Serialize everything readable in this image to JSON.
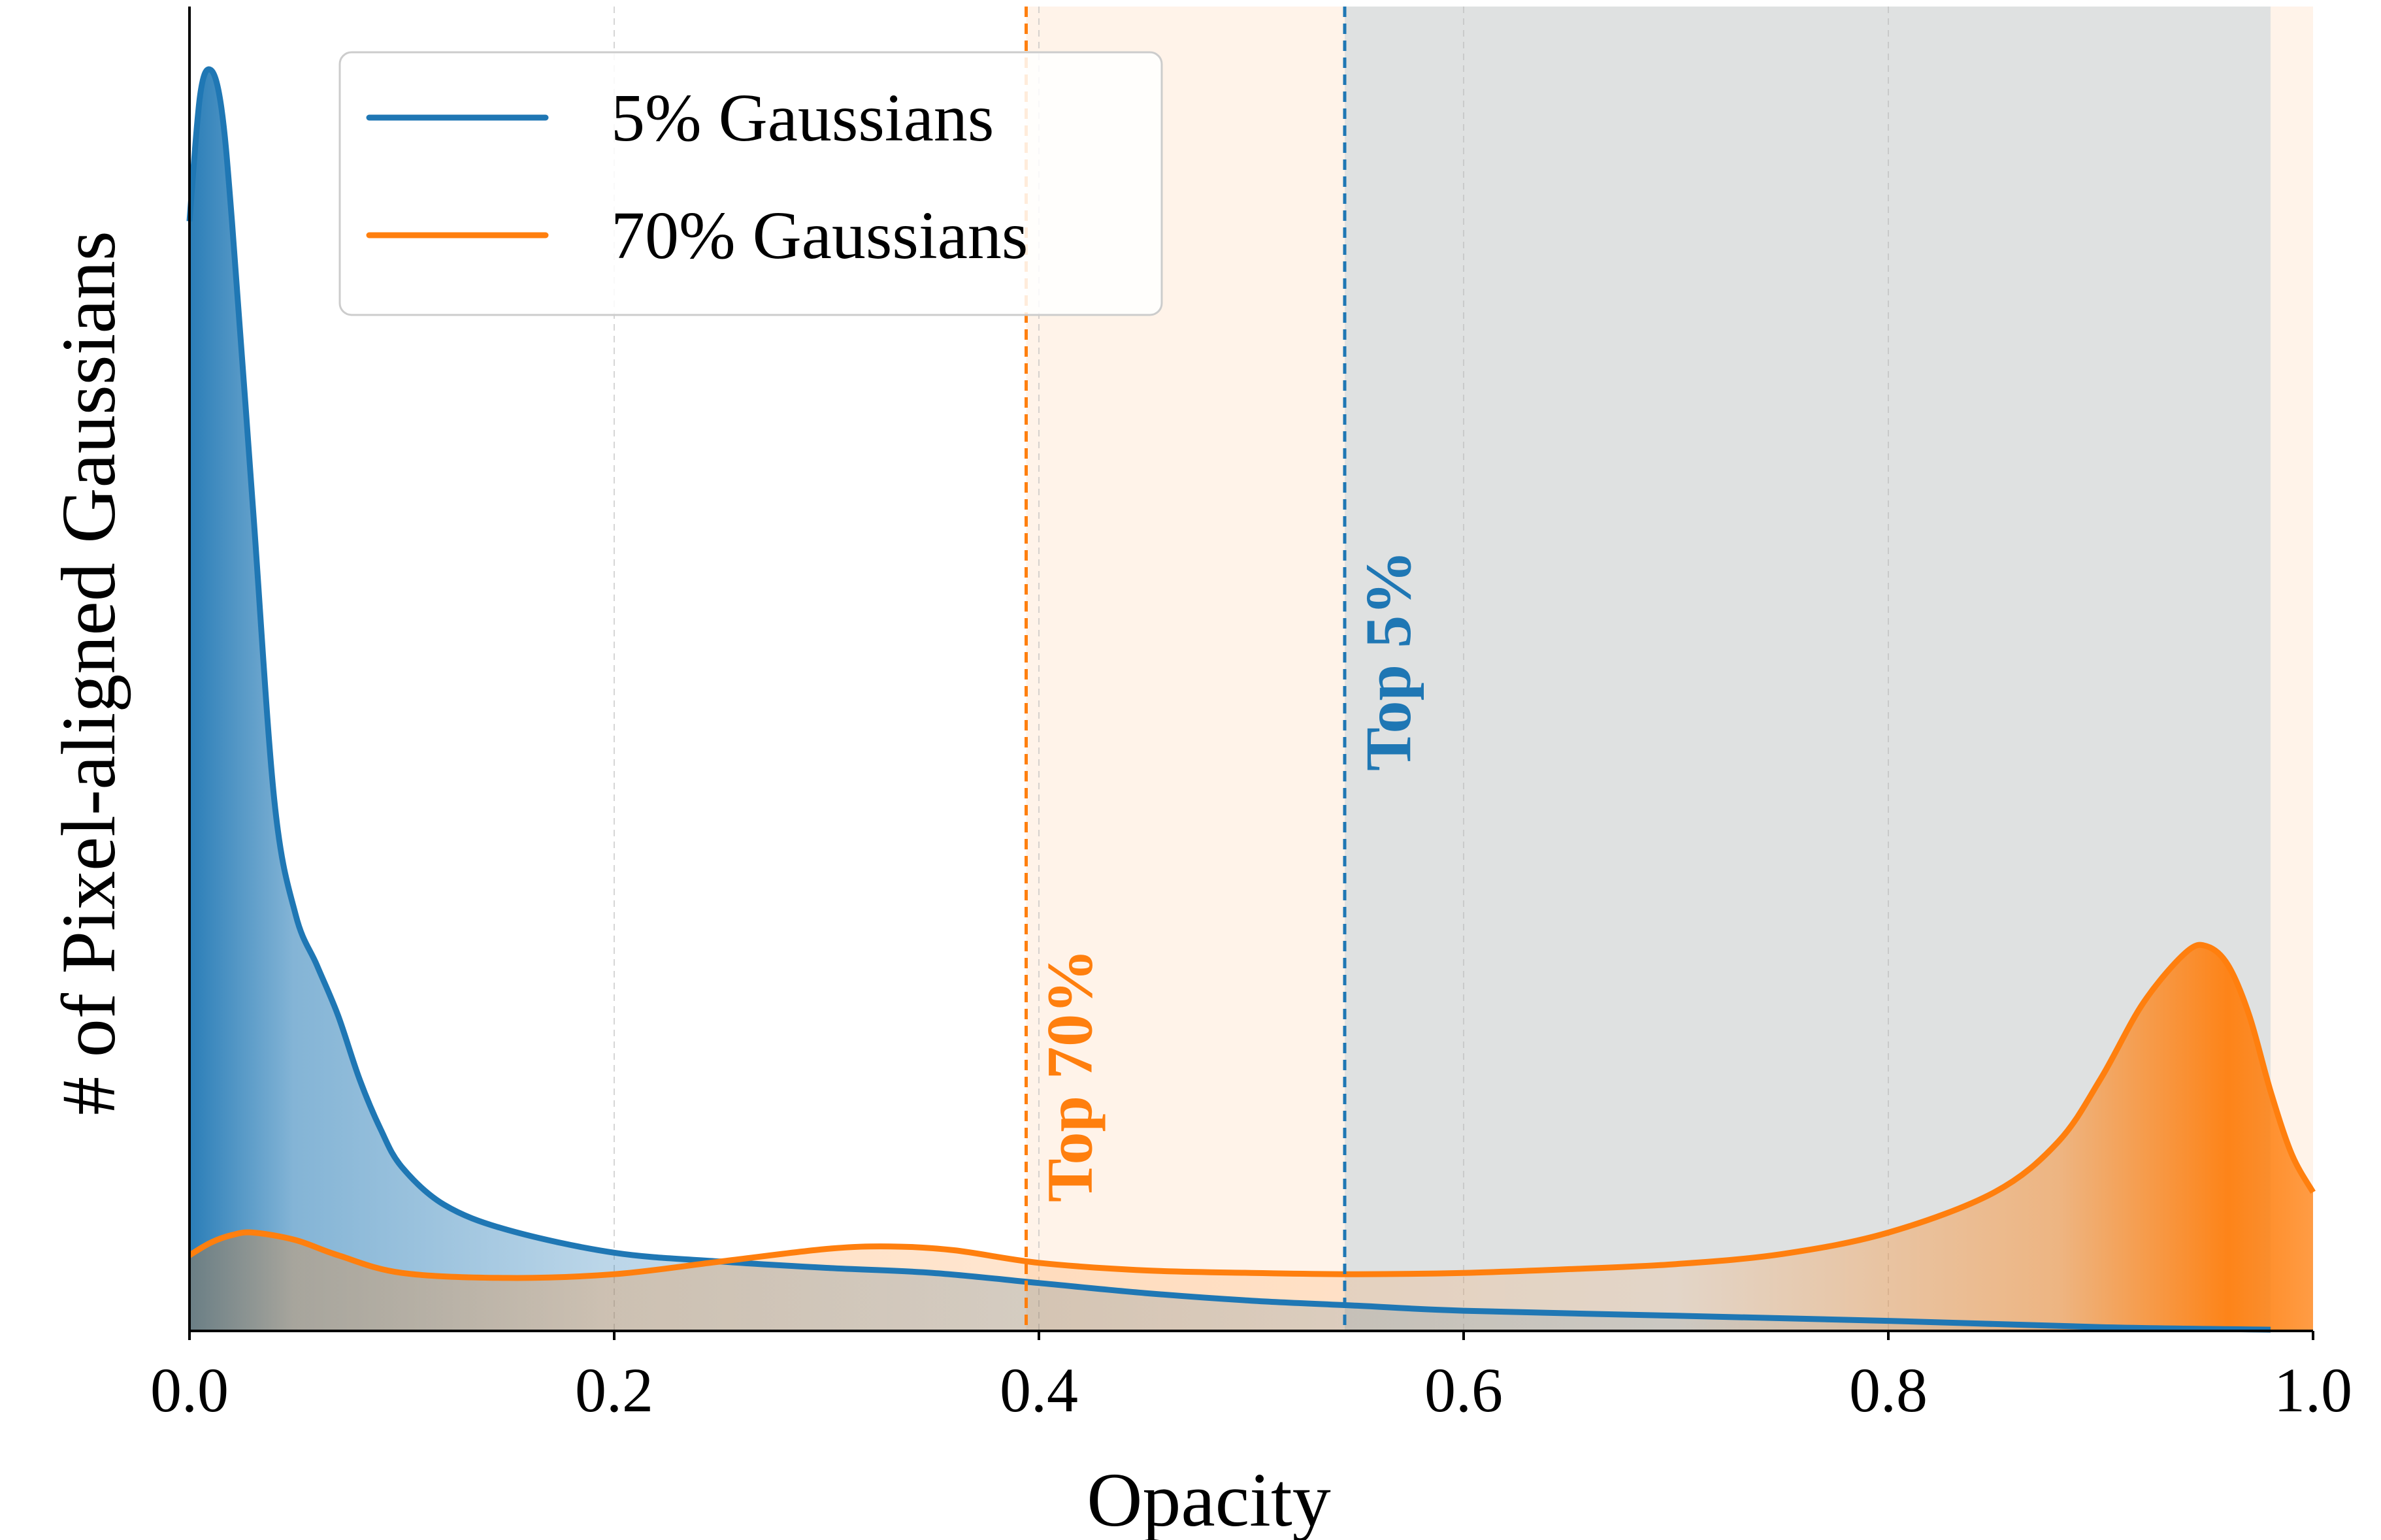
{
  "chart_data": {
    "type": "area",
    "xlabel": "Opacity",
    "ylabel": "# of Pixel-aligned Gaussians",
    "xlim": [
      0,
      1
    ],
    "ylim": [
      0,
      1
    ],
    "x_ticks": [
      "0.0",
      "0.2",
      "0.4",
      "0.6",
      "0.8",
      "1.0"
    ],
    "y_ticks_shown": false,
    "grid": "vertical dashed",
    "legend_position": "upper-left",
    "series": [
      {
        "name": "5% Gaussians",
        "color": "#1f77b4",
        "x": [
          0.0,
          0.005,
          0.01,
          0.015,
          0.02,
          0.03,
          0.04,
          0.05,
          0.06,
          0.07,
          0.08,
          0.09,
          0.1,
          0.12,
          0.15,
          0.2,
          0.25,
          0.3,
          0.35,
          0.4,
          0.45,
          0.5,
          0.55,
          0.6,
          0.7,
          0.8,
          0.9,
          0.98
        ],
        "values": [
          0.88,
          0.98,
          1.0,
          0.97,
          0.88,
          0.65,
          0.42,
          0.33,
          0.29,
          0.25,
          0.2,
          0.16,
          0.13,
          0.1,
          0.08,
          0.062,
          0.055,
          0.05,
          0.046,
          0.038,
          0.03,
          0.024,
          0.02,
          0.016,
          0.012,
          0.008,
          0.003,
          0.001
        ]
      },
      {
        "name": "70% Gaussians",
        "color": "#ff7f0e",
        "x": [
          0.0,
          0.01,
          0.02,
          0.03,
          0.05,
          0.07,
          0.1,
          0.15,
          0.2,
          0.25,
          0.3,
          0.33,
          0.36,
          0.4,
          0.45,
          0.5,
          0.55,
          0.6,
          0.65,
          0.7,
          0.75,
          0.8,
          0.85,
          0.88,
          0.9,
          0.92,
          0.94,
          0.95,
          0.96,
          0.97,
          0.98,
          0.99,
          1.0
        ],
        "values": [
          0.06,
          0.07,
          0.076,
          0.078,
          0.072,
          0.06,
          0.046,
          0.042,
          0.045,
          0.055,
          0.065,
          0.067,
          0.064,
          0.054,
          0.048,
          0.046,
          0.045,
          0.046,
          0.049,
          0.053,
          0.061,
          0.078,
          0.11,
          0.15,
          0.2,
          0.26,
          0.3,
          0.305,
          0.29,
          0.25,
          0.19,
          0.14,
          0.11
        ]
      }
    ],
    "thresholds": [
      {
        "label": "Top 70%",
        "x": 0.394,
        "color": "#ff7f0e"
      },
      {
        "label": "Top 5%",
        "x": 0.544,
        "color": "#1f77b4"
      }
    ],
    "shaded_regions": [
      {
        "from": 0.394,
        "to": 1.0,
        "color": "#ff7f0e"
      },
      {
        "from": 0.544,
        "to": 0.98,
        "color": "#1f77b4"
      }
    ]
  }
}
